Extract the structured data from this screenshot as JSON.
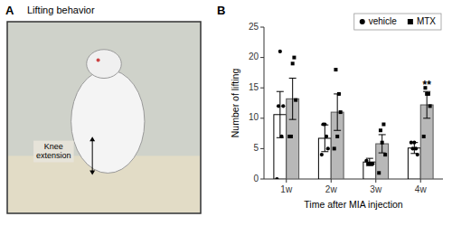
{
  "chart_data": {
    "type": "bar",
    "categories": [
      "1w",
      "2w",
      "3w",
      "4w"
    ],
    "series": [
      {
        "name": "vehicle",
        "color": "white",
        "marker": "circle",
        "values": [
          10.6,
          6.7,
          2.8,
          5.1
        ],
        "errors": [
          3.8,
          2.2,
          0.6,
          0.9
        ],
        "points": [
          [
            0.0,
            12.0,
            21.0,
            7.0,
            12.0
          ],
          [
            4.0,
            9.0,
            9.0,
            7.0,
            5.0
          ],
          [
            3.0,
            2.5,
            2.5,
            2.5,
            2.5
          ],
          [
            6.0,
            5.0,
            6.0,
            5.0,
            4.0
          ]
        ]
      },
      {
        "name": "MTX",
        "color": "#b8b8b8",
        "marker": "square",
        "values": [
          13.2,
          11.0,
          5.8,
          12.2
        ],
        "errors": [
          3.4,
          3.0,
          1.5,
          2.2
        ],
        "points": [
          [
            7.0,
            7.0,
            19.0,
            20.0,
            13.0
          ],
          [
            5.0,
            18.0,
            7.0,
            14.0,
            11.0
          ],
          [
            1.0,
            8.0,
            6.0,
            9.0,
            4.0
          ],
          [
            7.0,
            15.0,
            14.0,
            14.0,
            12.0
          ]
        ]
      }
    ],
    "xlabel": "Time after MIA injection",
    "ylabel": "Number of lifting",
    "ylim": [
      0,
      25
    ],
    "yticks": [
      0,
      5,
      10,
      15,
      20,
      25
    ],
    "grid": false,
    "legend": "upper right",
    "annotations": [
      {
        "text": "A"
      },
      {
        "text": "Lifting behavior"
      },
      {
        "text": "Knee\nextension"
      },
      {
        "text": "B"
      },
      {
        "text": "**",
        "category": "4w",
        "series": "MTX"
      }
    ]
  }
}
